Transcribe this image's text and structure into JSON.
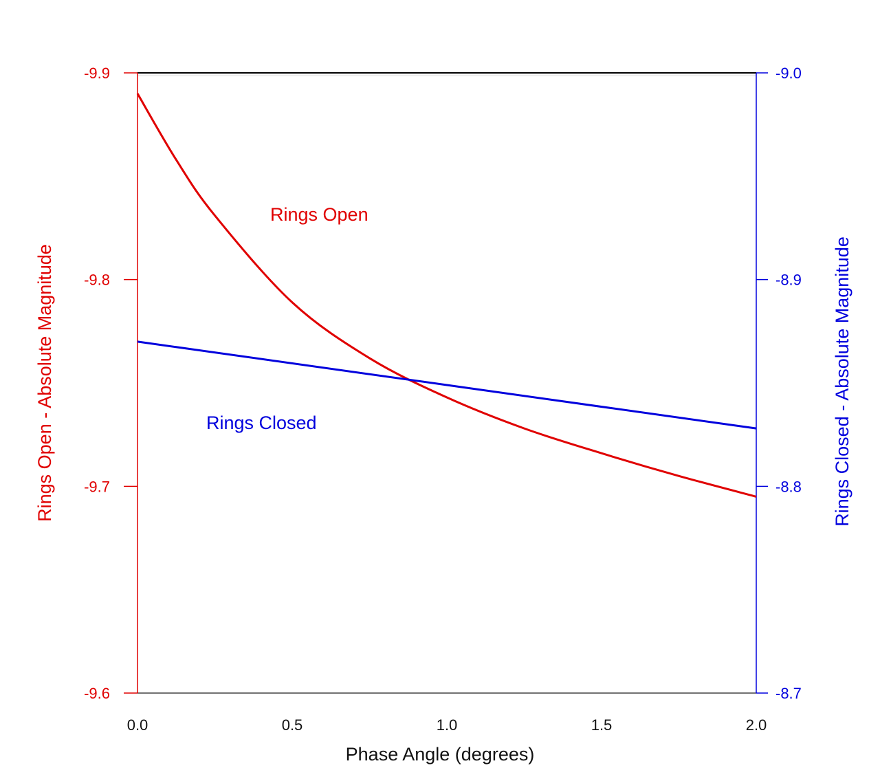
{
  "chart_data": {
    "type": "line",
    "title": "",
    "xlabel": "Phase Angle (degrees)",
    "ylabel_left": "Rings Open - Absolute Magnitude",
    "ylabel_right": "Rings Closed - Absolute Magnitude",
    "xlim": [
      0,
      2.0
    ],
    "ylim_left": [
      -9.9,
      -9.6
    ],
    "ylim_right": [
      -9.0,
      -8.7
    ],
    "x_ticks": [
      "0.0",
      "0.5",
      "1.0",
      "1.5",
      "2.0"
    ],
    "x_tick_values": [
      0,
      0.5,
      1.0,
      1.5,
      2.0
    ],
    "y_left_ticks": [
      "-9.9",
      "-9.8",
      "-9.7",
      "-9.6"
    ],
    "y_left_tick_values": [
      -9.9,
      -9.8,
      -9.7,
      -9.6
    ],
    "y_right_ticks": [
      "-9.0",
      "-8.9",
      "-8.8",
      "-8.7"
    ],
    "y_right_tick_values": [
      -9.0,
      -8.9,
      -8.8,
      -8.7
    ],
    "grid": false,
    "series": [
      {
        "name": "Rings Open",
        "axis": "left",
        "color": "#e00000",
        "x": [
          0,
          0.125,
          0.25,
          0.5,
          0.75,
          1.0,
          1.25,
          1.5,
          1.75,
          2.0
        ],
        "values": [
          -9.89,
          -9.858,
          -9.831,
          -9.789,
          -9.762,
          -9.743,
          -9.728,
          -9.716,
          -9.705,
          -9.695
        ]
      },
      {
        "name": "Rings Closed",
        "axis": "right",
        "color": "#0000dd",
        "x": [
          0,
          2.0
        ],
        "values": [
          -8.87,
          -8.828
        ]
      }
    ],
    "annotations": [
      "Rings Open",
      "Rings Closed"
    ]
  }
}
